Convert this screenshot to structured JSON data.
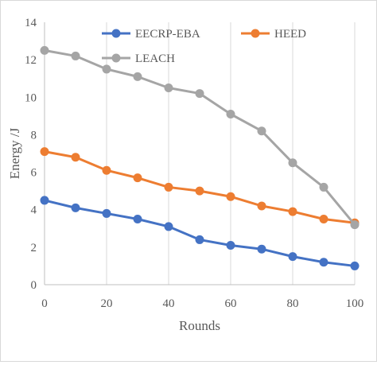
{
  "chart_data": {
    "type": "line",
    "xlabel": "Rounds",
    "ylabel": "Energy /J",
    "x": [
      0,
      10,
      20,
      30,
      40,
      50,
      60,
      70,
      80,
      90,
      100
    ],
    "xlim": [
      0,
      100
    ],
    "ylim": [
      0,
      14
    ],
    "x_ticks": [
      "0",
      "20",
      "40",
      "60",
      "80",
      "100"
    ],
    "y_ticks": [
      "0",
      "2",
      "4",
      "6",
      "8",
      "10",
      "12",
      "14"
    ],
    "grid": "vertical",
    "legend_position": "top",
    "series": [
      {
        "name": "EECRP-EBA",
        "color": "#4472c4",
        "values": [
          4.5,
          4.1,
          3.8,
          3.5,
          3.1,
          2.4,
          2.1,
          1.9,
          1.5,
          1.2,
          1.0
        ]
      },
      {
        "name": "HEED",
        "color": "#ed7d31",
        "values": [
          7.1,
          6.8,
          6.1,
          5.7,
          5.2,
          5.0,
          4.7,
          4.2,
          3.9,
          3.5,
          3.3
        ]
      },
      {
        "name": "LEACH",
        "color": "#a5a5a5",
        "values": [
          12.5,
          12.2,
          11.5,
          11.1,
          10.5,
          10.2,
          9.1,
          8.2,
          6.5,
          5.2,
          3.2
        ]
      }
    ]
  }
}
